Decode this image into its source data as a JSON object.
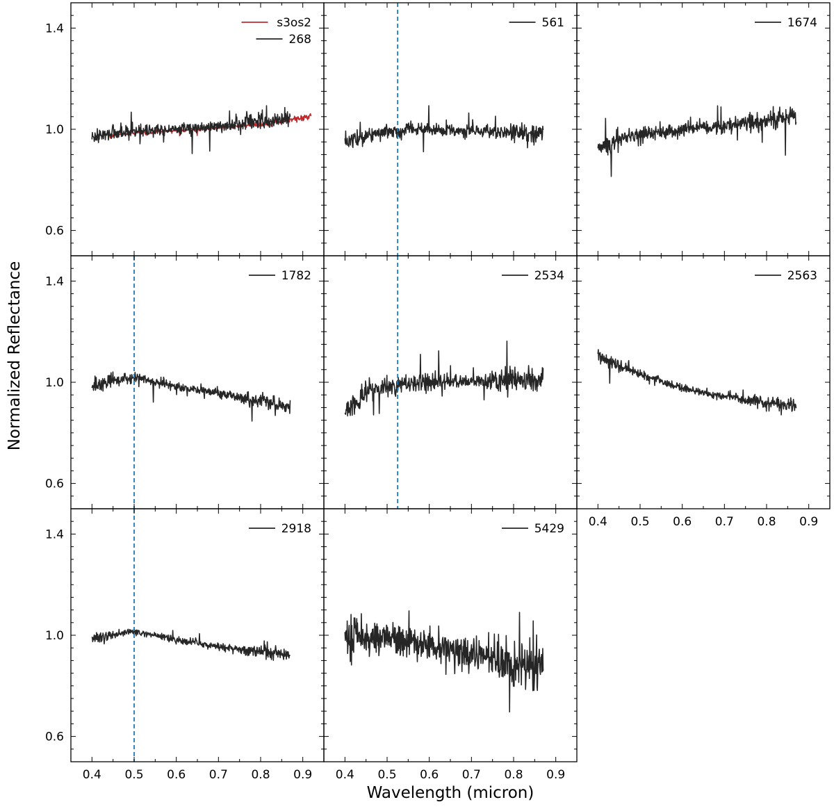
{
  "figure": {
    "ylabel": "Normalized Reflectance",
    "xlabel": "Wavelength (micron)"
  },
  "colors": {
    "spectrum": "#262626",
    "comparison": "#c0282b",
    "marker_line": "#1f77b4"
  },
  "chart_data": [
    {
      "type": "line",
      "row": 0,
      "col": 0,
      "xlim": [
        0.35,
        0.95
      ],
      "ylim": [
        0.5,
        1.5
      ],
      "x_ticks": [
        0.4,
        0.5,
        0.6,
        0.7,
        0.8,
        0.9
      ],
      "y_ticks": [
        0.6,
        1.0,
        1.4
      ],
      "show_x_tick_labels": false,
      "show_y_tick_labels": true,
      "legend_position": "top-right",
      "vline": null,
      "series": [
        {
          "name": "s3os2",
          "color": "red",
          "noise": 0.006,
          "points": [
            [
              0.44,
              0.975
            ],
            [
              0.5,
              0.985
            ],
            [
              0.6,
              0.995
            ],
            [
              0.7,
              1.005
            ],
            [
              0.8,
              1.02
            ],
            [
              0.9,
              1.045
            ],
            [
              0.92,
              1.055
            ]
          ]
        },
        {
          "name": "268",
          "color": "black",
          "noise": 0.02,
          "points": [
            [
              0.4,
              0.97
            ],
            [
              0.45,
              0.985
            ],
            [
              0.5,
              0.99
            ],
            [
              0.6,
              1.0
            ],
            [
              0.7,
              1.01
            ],
            [
              0.75,
              1.02
            ],
            [
              0.8,
              1.03
            ],
            [
              0.87,
              1.04
            ]
          ]
        }
      ]
    },
    {
      "type": "line",
      "row": 0,
      "col": 1,
      "xlim": [
        0.35,
        0.95
      ],
      "ylim": [
        0.5,
        1.5
      ],
      "x_ticks": [
        0.4,
        0.5,
        0.6,
        0.7,
        0.8,
        0.9
      ],
      "y_ticks": [
        0.6,
        1.0,
        1.4
      ],
      "show_x_tick_labels": false,
      "show_y_tick_labels": false,
      "legend_position": "top-right",
      "vline": 0.525,
      "series": [
        {
          "name": "561",
          "color": "black",
          "noise": 0.022,
          "points": [
            [
              0.4,
              0.95
            ],
            [
              0.45,
              0.975
            ],
            [
              0.5,
              0.99
            ],
            [
              0.55,
              1.0
            ],
            [
              0.7,
              0.995
            ],
            [
              0.8,
              0.985
            ],
            [
              0.87,
              0.98
            ]
          ]
        }
      ]
    },
    {
      "type": "line",
      "row": 0,
      "col": 2,
      "xlim": [
        0.35,
        0.95
      ],
      "ylim": [
        0.5,
        1.5
      ],
      "x_ticks": [
        0.4,
        0.5,
        0.6,
        0.7,
        0.8,
        0.9
      ],
      "y_ticks": [
        0.6,
        1.0,
        1.4
      ],
      "show_x_tick_labels": false,
      "show_y_tick_labels": false,
      "legend_position": "top-right",
      "vline": null,
      "series": [
        {
          "name": "1674",
          "color": "black",
          "noise": 0.025,
          "points": [
            [
              0.4,
              0.92
            ],
            [
              0.45,
              0.965
            ],
            [
              0.5,
              0.98
            ],
            [
              0.6,
              1.0
            ],
            [
              0.7,
              1.015
            ],
            [
              0.8,
              1.035
            ],
            [
              0.87,
              1.055
            ]
          ]
        }
      ]
    },
    {
      "type": "line",
      "row": 1,
      "col": 0,
      "xlim": [
        0.35,
        0.95
      ],
      "ylim": [
        0.5,
        1.5
      ],
      "x_ticks": [
        0.4,
        0.5,
        0.6,
        0.7,
        0.8,
        0.9
      ],
      "y_ticks": [
        0.6,
        1.0,
        1.4
      ],
      "show_x_tick_labels": false,
      "show_y_tick_labels": true,
      "legend_position": "top-right",
      "vline": 0.5,
      "series": [
        {
          "name": "1782",
          "color": "black",
          "noise": 0.018,
          "points": [
            [
              0.4,
              0.985
            ],
            [
              0.45,
              1.005
            ],
            [
              0.5,
              1.02
            ],
            [
              0.55,
              1.0
            ],
            [
              0.6,
              0.985
            ],
            [
              0.7,
              0.955
            ],
            [
              0.8,
              0.925
            ],
            [
              0.87,
              0.9
            ]
          ]
        }
      ]
    },
    {
      "type": "line",
      "row": 1,
      "col": 1,
      "xlim": [
        0.35,
        0.95
      ],
      "ylim": [
        0.5,
        1.5
      ],
      "x_ticks": [
        0.4,
        0.5,
        0.6,
        0.7,
        0.8,
        0.9
      ],
      "y_ticks": [
        0.6,
        1.0,
        1.4
      ],
      "show_x_tick_labels": false,
      "show_y_tick_labels": false,
      "legend_position": "top-right",
      "vline": 0.525,
      "series": [
        {
          "name": "2534",
          "color": "black",
          "noise": 0.03,
          "points": [
            [
              0.4,
              0.89
            ],
            [
              0.45,
              0.955
            ],
            [
              0.5,
              0.98
            ],
            [
              0.55,
              0.995
            ],
            [
              0.6,
              1.0
            ],
            [
              0.7,
              1.005
            ],
            [
              0.8,
              1.005
            ],
            [
              0.87,
              1.01
            ]
          ]
        }
      ]
    },
    {
      "type": "line",
      "row": 1,
      "col": 2,
      "xlim": [
        0.35,
        0.95
      ],
      "ylim": [
        0.5,
        1.5
      ],
      "x_ticks": [
        0.4,
        0.5,
        0.6,
        0.7,
        0.8,
        0.9
      ],
      "y_ticks": [
        0.6,
        1.0,
        1.4
      ],
      "show_x_tick_labels": true,
      "show_y_tick_labels": false,
      "legend_position": "top-right",
      "vline": null,
      "series": [
        {
          "name": "2563",
          "color": "black",
          "noise": 0.016,
          "points": [
            [
              0.4,
              1.11
            ],
            [
              0.45,
              1.065
            ],
            [
              0.5,
              1.035
            ],
            [
              0.55,
              1.005
            ],
            [
              0.6,
              0.975
            ],
            [
              0.7,
              0.945
            ],
            [
              0.8,
              0.92
            ],
            [
              0.87,
              0.905
            ]
          ]
        }
      ]
    },
    {
      "type": "line",
      "row": 2,
      "col": 0,
      "xlim": [
        0.35,
        0.95
      ],
      "ylim": [
        0.5,
        1.5
      ],
      "x_ticks": [
        0.4,
        0.5,
        0.6,
        0.7,
        0.8,
        0.9
      ],
      "y_ticks": [
        0.6,
        1.0,
        1.4
      ],
      "show_x_tick_labels": true,
      "show_y_tick_labels": true,
      "legend_position": "top-right",
      "vline": 0.5,
      "series": [
        {
          "name": "2918",
          "color": "black",
          "noise": 0.013,
          "points": [
            [
              0.4,
              0.99
            ],
            [
              0.45,
              1.0
            ],
            [
              0.5,
              1.015
            ],
            [
              0.55,
              1.0
            ],
            [
              0.6,
              0.98
            ],
            [
              0.7,
              0.955
            ],
            [
              0.8,
              0.935
            ],
            [
              0.87,
              0.92
            ]
          ]
        }
      ]
    },
    {
      "type": "line",
      "row": 2,
      "col": 1,
      "xlim": [
        0.35,
        0.95
      ],
      "ylim": [
        0.5,
        1.5
      ],
      "x_ticks": [
        0.4,
        0.5,
        0.6,
        0.7,
        0.8,
        0.9
      ],
      "y_ticks": [
        0.6,
        1.0,
        1.4
      ],
      "show_x_tick_labels": true,
      "show_y_tick_labels": false,
      "legend_position": "top-right",
      "vline": null,
      "series": [
        {
          "name": "5429",
          "color": "black",
          "noise": 0.06,
          "points": [
            [
              0.4,
              1.01
            ],
            [
              0.45,
              0.99
            ],
            [
              0.5,
              0.99
            ],
            [
              0.55,
              0.975
            ],
            [
              0.6,
              0.955
            ],
            [
              0.7,
              0.925
            ],
            [
              0.8,
              0.89
            ],
            [
              0.87,
              0.87
            ]
          ]
        }
      ]
    }
  ]
}
